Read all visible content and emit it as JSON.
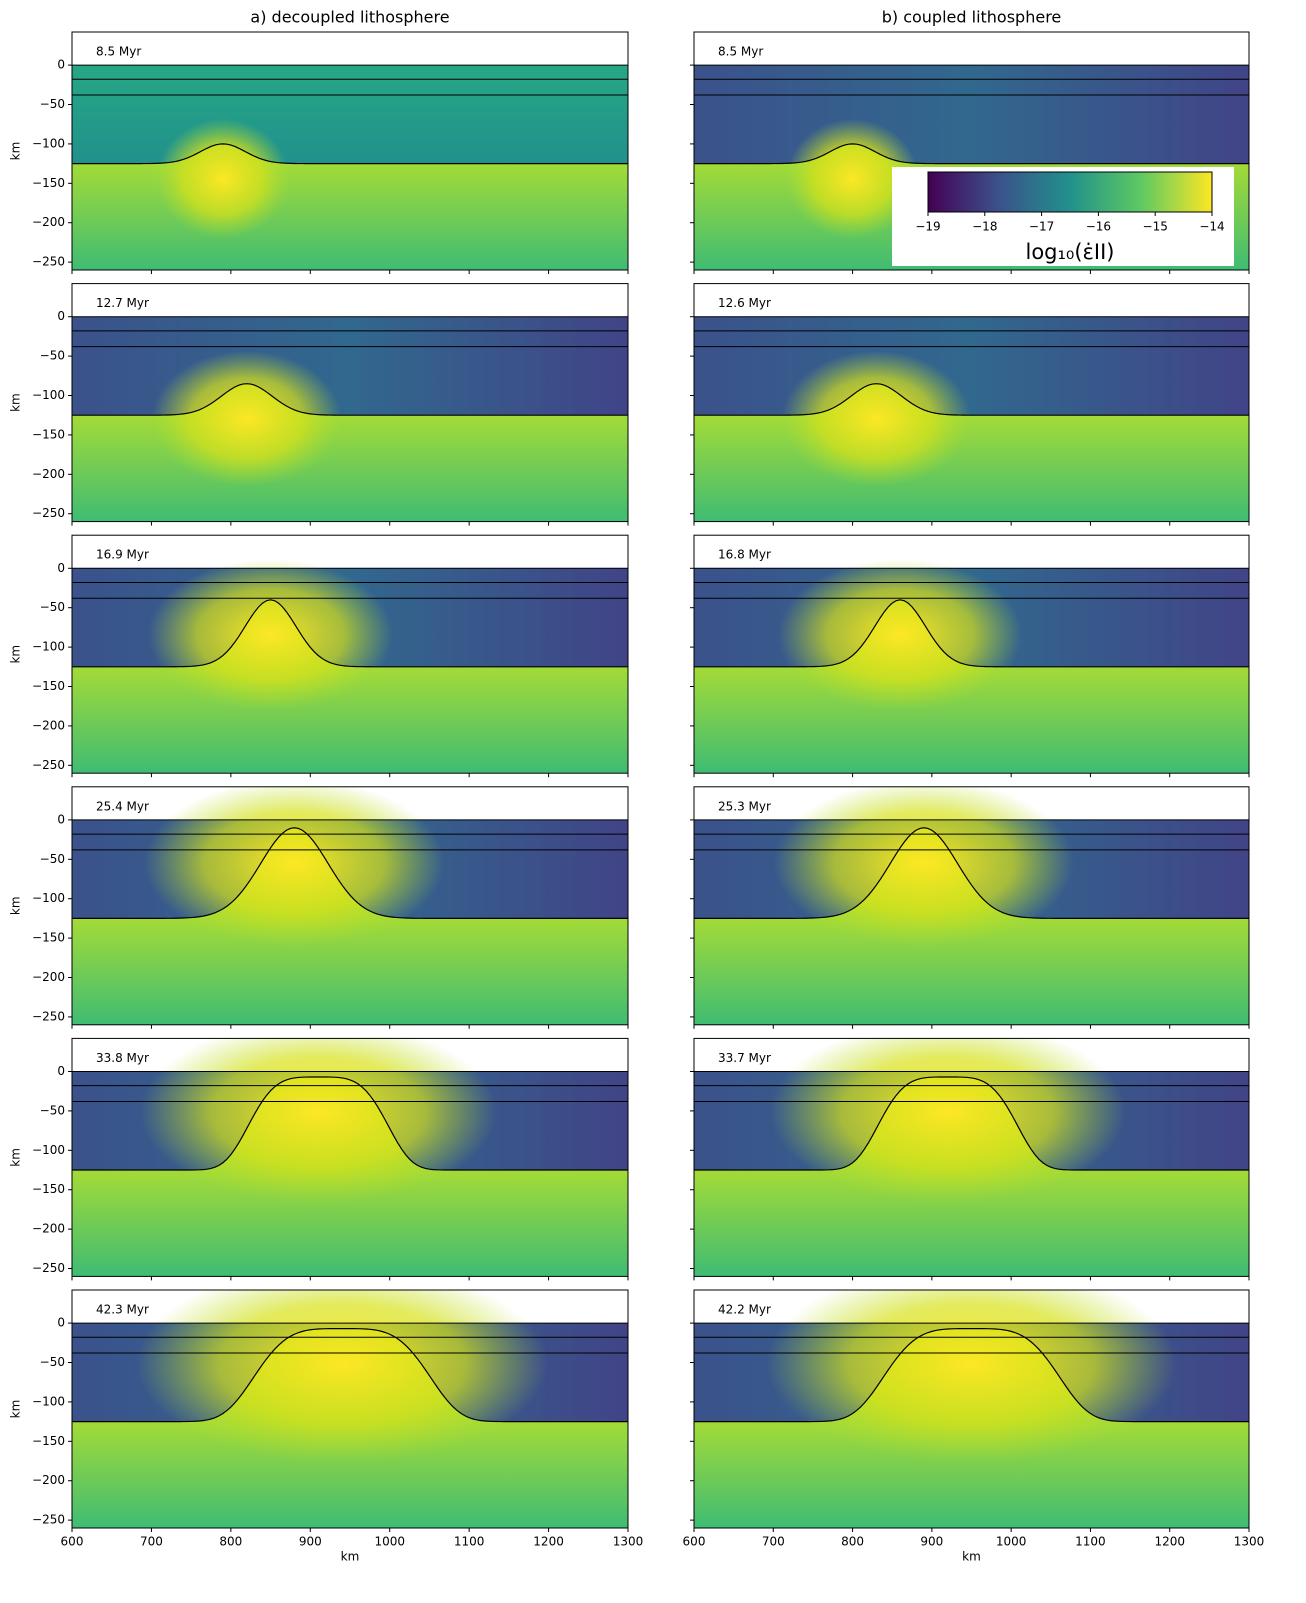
{
  "chart_data": [
    {
      "type": "heatmap",
      "title": "a) decoupled lithosphere",
      "annotation": "8.5 Myr",
      "ylabel": "km",
      "xlim": [
        600,
        1300
      ],
      "ylim": [
        -260,
        42
      ],
      "xticks": [
        600,
        700,
        800,
        900,
        1000,
        1100,
        1200,
        1300
      ],
      "yticks": [
        0,
        {
          "value": -50,
          "label": "−50"
        },
        {
          "value": -100,
          "label": "−100"
        },
        {
          "value": -150,
          "label": "−150"
        },
        {
          "value": -200,
          "label": "−200"
        },
        {
          "value": -250,
          "label": "−250"
        }
      ]
    },
    {
      "type": "heatmap",
      "title": "b) coupled lithosphere",
      "annotation": "8.5 Myr",
      "xlim": [
        600,
        1300
      ],
      "ylim": [
        -260,
        42
      ],
      "xticks": [
        600,
        700,
        800,
        900,
        1000,
        1100,
        1200,
        1300
      ],
      "yticks": [
        0,
        -50,
        -100,
        -150,
        -200,
        -250
      ],
      "colorbar": {
        "label": "log₁₀(ε̇II)",
        "lim": [
          -19,
          -14
        ],
        "ticks": [
          {
            "value": -19,
            "label": "−19"
          },
          {
            "value": -18,
            "label": "−18"
          },
          {
            "value": -17,
            "label": "−17"
          },
          {
            "value": -16,
            "label": "−16"
          },
          {
            "value": -15,
            "label": "−15"
          },
          {
            "value": -14,
            "label": "−14"
          }
        ],
        "colormap": "viridis"
      }
    },
    {
      "type": "heatmap",
      "annotation": "12.7 Myr",
      "ylabel": "km",
      "xlim": [
        600,
        1300
      ],
      "ylim": [
        -260,
        42
      ],
      "xticks": [
        600,
        700,
        800,
        900,
        1000,
        1100,
        1200,
        1300
      ],
      "yticks": [
        0,
        {
          "value": -50,
          "label": "−50"
        },
        {
          "value": -100,
          "label": "−100"
        },
        {
          "value": -150,
          "label": "−150"
        },
        {
          "value": -200,
          "label": "−200"
        },
        {
          "value": -250,
          "label": "−250"
        }
      ]
    },
    {
      "type": "heatmap",
      "annotation": "12.6 Myr",
      "xlim": [
        600,
        1300
      ],
      "ylim": [
        -260,
        42
      ],
      "xticks": [
        600,
        700,
        800,
        900,
        1000,
        1100,
        1200,
        1300
      ],
      "yticks": [
        0,
        -50,
        -100,
        -150,
        -200,
        -250
      ]
    },
    {
      "type": "heatmap",
      "annotation": "16.9 Myr",
      "ylabel": "km",
      "xlim": [
        600,
        1300
      ],
      "ylim": [
        -260,
        42
      ],
      "xticks": [
        600,
        700,
        800,
        900,
        1000,
        1100,
        1200,
        1300
      ],
      "yticks": [
        0,
        {
          "value": -50,
          "label": "−50"
        },
        {
          "value": -100,
          "label": "−100"
        },
        {
          "value": -150,
          "label": "−150"
        },
        {
          "value": -200,
          "label": "−200"
        },
        {
          "value": -250,
          "label": "−250"
        }
      ]
    },
    {
      "type": "heatmap",
      "annotation": "16.8 Myr",
      "xlim": [
        600,
        1300
      ],
      "ylim": [
        -260,
        42
      ],
      "xticks": [
        600,
        700,
        800,
        900,
        1000,
        1100,
        1200,
        1300
      ],
      "yticks": [
        0,
        -50,
        -100,
        -150,
        -200,
        -250
      ]
    },
    {
      "type": "heatmap",
      "annotation": "25.4 Myr",
      "ylabel": "km",
      "xlim": [
        600,
        1300
      ],
      "ylim": [
        -260,
        42
      ],
      "xticks": [
        600,
        700,
        800,
        900,
        1000,
        1100,
        1200,
        1300
      ],
      "yticks": [
        0,
        {
          "value": -50,
          "label": "−50"
        },
        {
          "value": -100,
          "label": "−100"
        },
        {
          "value": -150,
          "label": "−150"
        },
        {
          "value": -200,
          "label": "−200"
        },
        {
          "value": -250,
          "label": "−250"
        }
      ]
    },
    {
      "type": "heatmap",
      "annotation": "25.3 Myr",
      "xlim": [
        600,
        1300
      ],
      "ylim": [
        -260,
        42
      ],
      "xticks": [
        600,
        700,
        800,
        900,
        1000,
        1100,
        1200,
        1300
      ],
      "yticks": [
        0,
        -50,
        -100,
        -150,
        -200,
        -250
      ]
    },
    {
      "type": "heatmap",
      "annotation": "33.8 Myr",
      "ylabel": "km",
      "xlim": [
        600,
        1300
      ],
      "ylim": [
        -260,
        42
      ],
      "xticks": [
        600,
        700,
        800,
        900,
        1000,
        1100,
        1200,
        1300
      ],
      "yticks": [
        0,
        {
          "value": -50,
          "label": "−50"
        },
        {
          "value": -100,
          "label": "−100"
        },
        {
          "value": -150,
          "label": "−150"
        },
        {
          "value": -200,
          "label": "−200"
        },
        {
          "value": -250,
          "label": "−250"
        }
      ]
    },
    {
      "type": "heatmap",
      "annotation": "33.7 Myr",
      "xlim": [
        600,
        1300
      ],
      "ylim": [
        -260,
        42
      ],
      "xticks": [
        600,
        700,
        800,
        900,
        1000,
        1100,
        1200,
        1300
      ],
      "yticks": [
        0,
        -50,
        -100,
        -150,
        -200,
        -250
      ]
    },
    {
      "type": "heatmap",
      "annotation": "42.3 Myr",
      "xlabel": "km",
      "ylabel": "km",
      "xlim": [
        600,
        1300
      ],
      "ylim": [
        -260,
        42
      ],
      "xticks": [
        600,
        700,
        800,
        900,
        1000,
        1100,
        1200,
        1300
      ],
      "yticks": [
        0,
        {
          "value": -50,
          "label": "−50"
        },
        {
          "value": -100,
          "label": "−100"
        },
        {
          "value": -150,
          "label": "−150"
        },
        {
          "value": -200,
          "label": "−200"
        },
        {
          "value": -250,
          "label": "−250"
        }
      ]
    },
    {
      "type": "heatmap",
      "annotation": "42.2 Myr",
      "xlabel": "km",
      "xlim": [
        600,
        1300
      ],
      "ylim": [
        -260,
        42
      ],
      "xticks": [
        600,
        700,
        800,
        900,
        1000,
        1100,
        1200,
        1300
      ],
      "yticks": [
        0,
        -50,
        -100,
        -150,
        -200,
        -250
      ]
    }
  ]
}
